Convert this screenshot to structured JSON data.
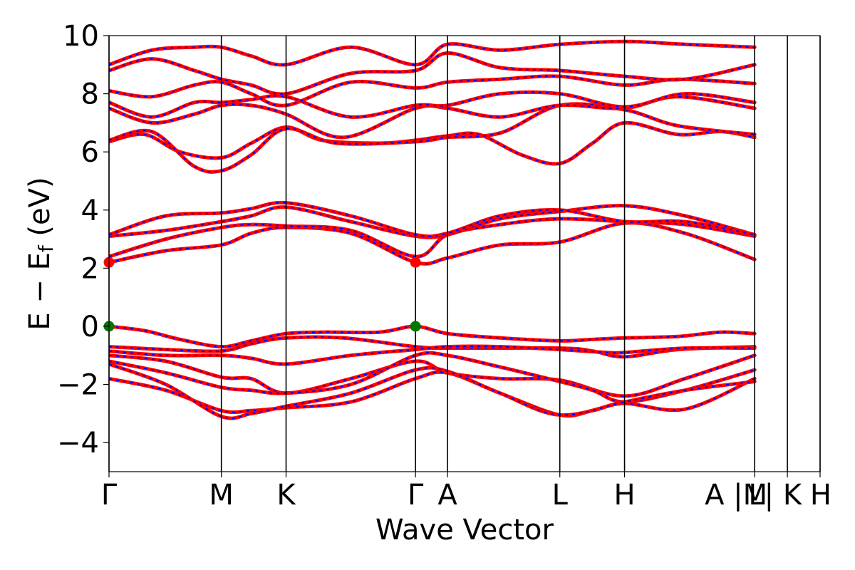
{
  "chart_data": {
    "type": "line",
    "title": "",
    "xlabel": "Wave Vector",
    "ylabel": "E − E",
    "ylabel_sub": "f",
    "ylabel_unit": " (eV)",
    "ylim": [
      -5,
      10
    ],
    "y_ticks": [
      -4,
      -2,
      0,
      2,
      4,
      6,
      8,
      10
    ],
    "y_tick_labels": [
      "−4",
      "−2",
      "0",
      "2",
      "4",
      "6",
      "8",
      "10"
    ],
    "x_ticks": [
      {
        "x": 0.0,
        "label": "Γ"
      },
      {
        "x": 0.158,
        "label": "M"
      },
      {
        "x": 0.249,
        "label": "K"
      },
      {
        "x": 0.431,
        "label": "Γ"
      },
      {
        "x": 0.476,
        "label": "A"
      },
      {
        "x": 0.634,
        "label": "L"
      },
      {
        "x": 0.725,
        "label": "H"
      },
      {
        "x": 0.908,
        "label": "A |M"
      },
      {
        "x": 0.954,
        "label": "L| K"
      },
      {
        "x": 1.0,
        "label": "H"
      }
    ],
    "grid": false,
    "legend": "none",
    "line_colors": {
      "primary": "#ff0000",
      "overlay": "#0000ff"
    },
    "marker_colors": {
      "cbm": "#ff0000",
      "vbm": "#007700"
    },
    "special_points": [
      {
        "name": "CBM",
        "points": [
          [
            0.0,
            2.2
          ],
          [
            0.431,
            2.2
          ]
        ]
      },
      {
        "name": "VBM",
        "points": [
          [
            0.0,
            0.0
          ],
          [
            0.431,
            0.0
          ]
        ]
      }
    ],
    "series": [
      {
        "values": [
          [
            0.0,
            0.0
          ],
          [
            0.05,
            -0.15
          ],
          [
            0.1,
            -0.45
          ],
          [
            0.158,
            -0.7
          ],
          [
            0.2,
            -0.5
          ],
          [
            0.249,
            -0.25
          ],
          [
            0.3,
            -0.2
          ],
          [
            0.38,
            -0.2
          ],
          [
            0.431,
            0.0
          ],
          [
            0.476,
            -0.25
          ],
          [
            0.55,
            -0.4
          ],
          [
            0.634,
            -0.5
          ],
          [
            0.68,
            -0.45
          ],
          [
            0.725,
            -0.4
          ],
          [
            0.8,
            -0.35
          ],
          [
            0.86,
            -0.2
          ],
          [
            0.908,
            -0.25
          ]
        ]
      },
      {
        "values": [
          [
            0.0,
            -0.7
          ],
          [
            0.08,
            -0.8
          ],
          [
            0.158,
            -0.85
          ],
          [
            0.2,
            -0.6
          ],
          [
            0.249,
            -0.4
          ],
          [
            0.33,
            -0.4
          ],
          [
            0.431,
            -0.7
          ],
          [
            0.476,
            -0.75
          ],
          [
            0.634,
            -0.75
          ],
          [
            0.68,
            -0.85
          ],
          [
            0.725,
            -1.05
          ],
          [
            0.8,
            -0.8
          ],
          [
            0.908,
            -0.7
          ]
        ]
      },
      {
        "values": [
          [
            0.0,
            -0.85
          ],
          [
            0.08,
            -1.0
          ],
          [
            0.158,
            -1.0
          ],
          [
            0.2,
            -1.1
          ],
          [
            0.249,
            -1.3
          ],
          [
            0.34,
            -1.0
          ],
          [
            0.431,
            -0.8
          ],
          [
            0.476,
            -0.7
          ],
          [
            0.55,
            -0.7
          ],
          [
            0.634,
            -0.8
          ],
          [
            0.7,
            -0.9
          ],
          [
            0.725,
            -0.9
          ],
          [
            0.81,
            -0.75
          ],
          [
            0.908,
            -0.75
          ]
        ]
      },
      {
        "values": [
          [
            0.0,
            -1.0
          ],
          [
            0.08,
            -1.2
          ],
          [
            0.158,
            -1.75
          ],
          [
            0.2,
            -1.8
          ],
          [
            0.249,
            -2.3
          ],
          [
            0.34,
            -1.8
          ],
          [
            0.431,
            -1.2
          ],
          [
            0.476,
            -1.6
          ],
          [
            0.55,
            -1.8
          ],
          [
            0.634,
            -1.85
          ],
          [
            0.725,
            -2.4
          ],
          [
            0.81,
            -1.8
          ],
          [
            0.908,
            -1.0
          ]
        ]
      },
      {
        "values": [
          [
            0.0,
            -1.2
          ],
          [
            0.08,
            -1.6
          ],
          [
            0.158,
            -2.1
          ],
          [
            0.2,
            -2.2
          ],
          [
            0.249,
            -2.3
          ],
          [
            0.34,
            -2.0
          ],
          [
            0.431,
            -1.0
          ],
          [
            0.476,
            -1.0
          ],
          [
            0.55,
            -1.4
          ],
          [
            0.634,
            -1.9
          ],
          [
            0.68,
            -2.2
          ],
          [
            0.725,
            -2.6
          ],
          [
            0.81,
            -2.2
          ],
          [
            0.908,
            -1.5
          ]
        ]
      },
      {
        "values": [
          [
            0.0,
            -1.8
          ],
          [
            0.08,
            -2.2
          ],
          [
            0.158,
            -2.9
          ],
          [
            0.2,
            -2.9
          ],
          [
            0.249,
            -2.8
          ],
          [
            0.34,
            -2.6
          ],
          [
            0.431,
            -1.8
          ],
          [
            0.476,
            -1.6
          ],
          [
            0.55,
            -2.3
          ],
          [
            0.634,
            -3.05
          ],
          [
            0.68,
            -2.9
          ],
          [
            0.725,
            -2.65
          ],
          [
            0.81,
            -2.85
          ],
          [
            0.908,
            -1.8
          ]
        ]
      },
      {
        "values": [
          [
            0.0,
            -1.3
          ],
          [
            0.08,
            -2.0
          ],
          [
            0.158,
            -3.1
          ],
          [
            0.2,
            -3.0
          ],
          [
            0.249,
            -2.75
          ],
          [
            0.34,
            -2.3
          ],
          [
            0.431,
            -1.5
          ],
          [
            0.476,
            -1.55
          ],
          [
            0.55,
            -2.3
          ],
          [
            0.634,
            -3.05
          ],
          [
            0.725,
            -2.6
          ],
          [
            0.81,
            -2.2
          ],
          [
            0.908,
            -1.9
          ]
        ]
      },
      {
        "values": [
          [
            0.0,
            2.2
          ],
          [
            0.08,
            2.6
          ],
          [
            0.158,
            2.8
          ],
          [
            0.2,
            3.2
          ],
          [
            0.249,
            3.4
          ],
          [
            0.34,
            3.2
          ],
          [
            0.431,
            2.2
          ],
          [
            0.476,
            2.35
          ],
          [
            0.55,
            2.8
          ],
          [
            0.634,
            2.9
          ],
          [
            0.725,
            3.55
          ],
          [
            0.81,
            3.2
          ],
          [
            0.908,
            2.3
          ]
        ]
      },
      {
        "values": [
          [
            0.0,
            2.4
          ],
          [
            0.08,
            3.0
          ],
          [
            0.158,
            3.4
          ],
          [
            0.2,
            3.5
          ],
          [
            0.249,
            3.45
          ],
          [
            0.34,
            3.3
          ],
          [
            0.431,
            2.4
          ],
          [
            0.476,
            3.15
          ],
          [
            0.55,
            3.5
          ],
          [
            0.634,
            3.7
          ],
          [
            0.725,
            3.6
          ],
          [
            0.81,
            3.5
          ],
          [
            0.908,
            3.1
          ]
        ]
      },
      {
        "values": [
          [
            0.0,
            3.1
          ],
          [
            0.08,
            3.3
          ],
          [
            0.158,
            3.6
          ],
          [
            0.2,
            3.8
          ],
          [
            0.249,
            4.1
          ],
          [
            0.34,
            3.6
          ],
          [
            0.431,
            3.1
          ],
          [
            0.476,
            3.15
          ],
          [
            0.55,
            3.7
          ],
          [
            0.634,
            3.95
          ],
          [
            0.725,
            4.15
          ],
          [
            0.81,
            3.8
          ],
          [
            0.908,
            3.15
          ]
        ]
      },
      {
        "values": [
          [
            0.0,
            3.15
          ],
          [
            0.08,
            3.8
          ],
          [
            0.158,
            3.9
          ],
          [
            0.2,
            4.05
          ],
          [
            0.249,
            4.25
          ],
          [
            0.34,
            3.8
          ],
          [
            0.431,
            3.15
          ],
          [
            0.476,
            3.2
          ],
          [
            0.55,
            3.8
          ],
          [
            0.634,
            4.0
          ],
          [
            0.725,
            3.6
          ],
          [
            0.81,
            3.6
          ],
          [
            0.908,
            3.15
          ]
        ]
      },
      {
        "values": [
          [
            0.0,
            6.35
          ],
          [
            0.05,
            6.6
          ],
          [
            0.1,
            6.0
          ],
          [
            0.158,
            5.8
          ],
          [
            0.2,
            6.3
          ],
          [
            0.249,
            6.85
          ],
          [
            0.3,
            6.4
          ],
          [
            0.38,
            6.3
          ],
          [
            0.431,
            6.4
          ],
          [
            0.476,
            6.55
          ],
          [
            0.52,
            6.6
          ],
          [
            0.58,
            5.9
          ],
          [
            0.634,
            5.6
          ],
          [
            0.68,
            6.3
          ],
          [
            0.725,
            7.0
          ],
          [
            0.8,
            6.6
          ],
          [
            0.86,
            6.7
          ],
          [
            0.908,
            6.5
          ]
        ]
      },
      {
        "values": [
          [
            0.0,
            6.4
          ],
          [
            0.06,
            6.7
          ],
          [
            0.12,
            5.5
          ],
          [
            0.158,
            5.35
          ],
          [
            0.2,
            5.9
          ],
          [
            0.249,
            6.8
          ],
          [
            0.32,
            6.3
          ],
          [
            0.431,
            6.35
          ],
          [
            0.476,
            6.5
          ],
          [
            0.55,
            6.65
          ],
          [
            0.634,
            7.6
          ],
          [
            0.725,
            7.45
          ],
          [
            0.8,
            6.9
          ],
          [
            0.908,
            6.6
          ]
        ]
      },
      {
        "values": [
          [
            0.0,
            7.5
          ],
          [
            0.06,
            7.0
          ],
          [
            0.12,
            7.3
          ],
          [
            0.158,
            7.6
          ],
          [
            0.2,
            7.6
          ],
          [
            0.249,
            7.3
          ],
          [
            0.33,
            6.5
          ],
          [
            0.431,
            7.5
          ],
          [
            0.476,
            7.5
          ],
          [
            0.55,
            7.2
          ],
          [
            0.634,
            7.6
          ],
          [
            0.725,
            7.5
          ],
          [
            0.8,
            7.9
          ],
          [
            0.908,
            7.5
          ]
        ]
      },
      {
        "values": [
          [
            0.0,
            7.7
          ],
          [
            0.06,
            7.2
          ],
          [
            0.12,
            7.7
          ],
          [
            0.158,
            7.7
          ],
          [
            0.2,
            7.8
          ],
          [
            0.249,
            7.9
          ],
          [
            0.34,
            7.2
          ],
          [
            0.431,
            7.6
          ],
          [
            0.476,
            7.6
          ],
          [
            0.55,
            8.0
          ],
          [
            0.634,
            8.0
          ],
          [
            0.725,
            7.55
          ],
          [
            0.81,
            8.0
          ],
          [
            0.908,
            7.7
          ]
        ]
      },
      {
        "values": [
          [
            0.0,
            8.1
          ],
          [
            0.06,
            7.9
          ],
          [
            0.12,
            8.3
          ],
          [
            0.158,
            8.4
          ],
          [
            0.2,
            8.0
          ],
          [
            0.249,
            7.6
          ],
          [
            0.34,
            8.4
          ],
          [
            0.431,
            8.2
          ],
          [
            0.476,
            8.4
          ],
          [
            0.55,
            8.5
          ],
          [
            0.634,
            8.6
          ],
          [
            0.725,
            8.3
          ],
          [
            0.8,
            8.5
          ],
          [
            0.908,
            8.35
          ]
        ]
      },
      {
        "values": [
          [
            0.0,
            8.8
          ],
          [
            0.06,
            9.2
          ],
          [
            0.12,
            8.8
          ],
          [
            0.158,
            8.5
          ],
          [
            0.2,
            8.3
          ],
          [
            0.249,
            8.0
          ],
          [
            0.34,
            8.7
          ],
          [
            0.431,
            8.8
          ],
          [
            0.476,
            9.4
          ],
          [
            0.55,
            8.9
          ],
          [
            0.634,
            8.8
          ],
          [
            0.725,
            8.6
          ],
          [
            0.81,
            8.5
          ],
          [
            0.908,
            9.0
          ]
        ]
      },
      {
        "values": [
          [
            0.0,
            9.0
          ],
          [
            0.06,
            9.5
          ],
          [
            0.12,
            9.6
          ],
          [
            0.158,
            9.6
          ],
          [
            0.2,
            9.3
          ],
          [
            0.249,
            9.0
          ],
          [
            0.34,
            9.6
          ],
          [
            0.431,
            9.0
          ],
          [
            0.476,
            9.7
          ],
          [
            0.55,
            9.5
          ],
          [
            0.634,
            9.7
          ],
          [
            0.725,
            9.8
          ],
          [
            0.81,
            9.7
          ],
          [
            0.908,
            9.6
          ]
        ]
      }
    ]
  }
}
